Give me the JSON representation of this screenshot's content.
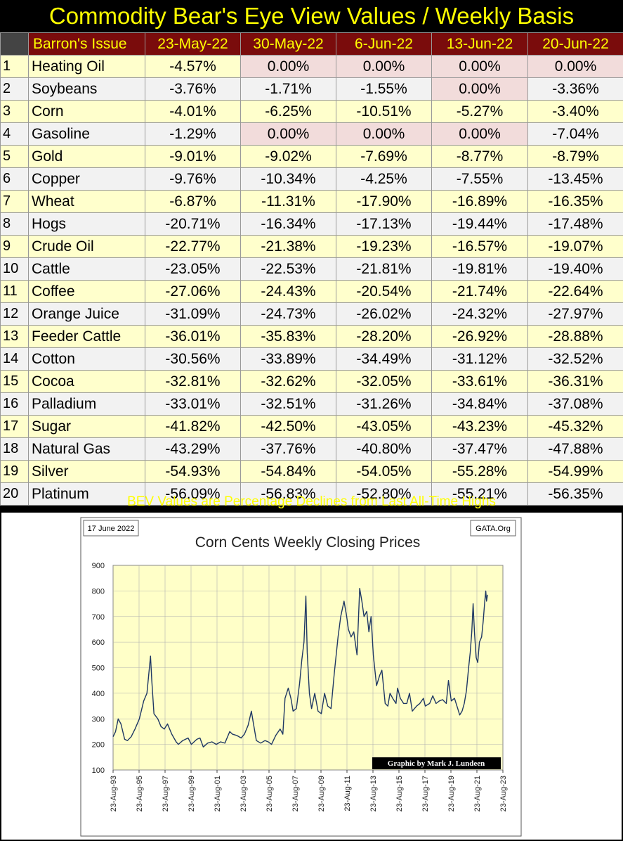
{
  "title": "Commodity Bear's Eye View Values / Weekly Basis",
  "table": {
    "header_label": "Barron's Issue",
    "columns": [
      "23-May-22",
      "30-May-22",
      "6-Jun-22",
      "13-Jun-22",
      "20-Jun-22"
    ],
    "rows": [
      {
        "rank": "1",
        "name": "Heating Oil",
        "values": [
          "-4.57%",
          "0.00%",
          "0.00%",
          "0.00%",
          "0.00%"
        ]
      },
      {
        "rank": "2",
        "name": "Soybeans",
        "values": [
          "-3.76%",
          "-1.71%",
          "-1.55%",
          "0.00%",
          "-3.36%"
        ]
      },
      {
        "rank": "3",
        "name": "Corn",
        "values": [
          "-4.01%",
          "-6.25%",
          "-10.51%",
          "-5.27%",
          "-3.40%"
        ]
      },
      {
        "rank": "4",
        "name": "Gasoline",
        "values": [
          "-1.29%",
          "0.00%",
          "0.00%",
          "0.00%",
          "-7.04%"
        ]
      },
      {
        "rank": "5",
        "name": "Gold",
        "values": [
          "-9.01%",
          "-9.02%",
          "-7.69%",
          "-8.77%",
          "-8.79%"
        ]
      },
      {
        "rank": "6",
        "name": "Copper",
        "values": [
          "-9.76%",
          "-10.34%",
          "-4.25%",
          "-7.55%",
          "-13.45%"
        ]
      },
      {
        "rank": "7",
        "name": "Wheat",
        "values": [
          "-6.87%",
          "-11.31%",
          "-17.90%",
          "-16.89%",
          "-16.35%"
        ]
      },
      {
        "rank": "8",
        "name": "Hogs",
        "values": [
          "-20.71%",
          "-16.34%",
          "-17.13%",
          "-19.44%",
          "-17.48%"
        ]
      },
      {
        "rank": "9",
        "name": "Crude Oil",
        "values": [
          "-22.77%",
          "-21.38%",
          "-19.23%",
          "-16.57%",
          "-19.07%"
        ]
      },
      {
        "rank": "10",
        "name": "Cattle",
        "values": [
          "-23.05%",
          "-22.53%",
          "-21.81%",
          "-19.81%",
          "-19.40%"
        ]
      },
      {
        "rank": "11",
        "name": "Coffee",
        "values": [
          "-27.06%",
          "-24.43%",
          "-20.54%",
          "-21.74%",
          "-22.64%"
        ]
      },
      {
        "rank": "12",
        "name": "Orange Juice",
        "values": [
          "-31.09%",
          "-24.73%",
          "-26.02%",
          "-24.32%",
          "-27.97%"
        ]
      },
      {
        "rank": "13",
        "name": "Feeder Cattle",
        "values": [
          "-36.01%",
          "-35.83%",
          "-28.20%",
          "-26.92%",
          "-28.88%"
        ]
      },
      {
        "rank": "14",
        "name": "Cotton",
        "values": [
          "-30.56%",
          "-33.89%",
          "-34.49%",
          "-31.12%",
          "-32.52%"
        ]
      },
      {
        "rank": "15",
        "name": "Cocoa",
        "values": [
          "-32.81%",
          "-32.62%",
          "-32.05%",
          "-33.61%",
          "-36.31%"
        ]
      },
      {
        "rank": "16",
        "name": "Palladium",
        "values": [
          "-33.01%",
          "-32.51%",
          "-31.26%",
          "-34.84%",
          "-37.08%"
        ]
      },
      {
        "rank": "17",
        "name": "Sugar",
        "values": [
          "-41.82%",
          "-42.50%",
          "-43.05%",
          "-43.23%",
          "-45.32%"
        ]
      },
      {
        "rank": "18",
        "name": "Natural Gas",
        "values": [
          "-43.29%",
          "-37.76%",
          "-40.80%",
          "-37.47%",
          "-47.88%"
        ]
      },
      {
        "rank": "19",
        "name": "Silver",
        "values": [
          "-54.93%",
          "-54.84%",
          "-54.05%",
          "-55.28%",
          "-54.99%"
        ]
      },
      {
        "rank": "20",
        "name": "Platinum",
        "values": [
          "-56.09%",
          "-56.83%",
          "-52.80%",
          "-55.21%",
          "-56.35%"
        ]
      }
    ]
  },
  "footnote": "BEV Values are Percentage Declines from Last All-Time Highs",
  "colors": {
    "title_text": "#ffff00",
    "header_bg": "#7a0c0c",
    "row_odd_bg": "#ffffcc",
    "row_even_bg": "#f2f2f2",
    "zero_cell_bg": "#f2dcdb",
    "plot_bg": "#ffffc8",
    "series_line": "#1f3864"
  },
  "chart_data": {
    "type": "line",
    "title": "Corn Cents Weekly Closing Prices",
    "date_label": "17 June 2022",
    "source_label": "GATA.Org",
    "credit_label": "Graphic by Mark J. Lundeen",
    "xlabel": "",
    "ylabel": "",
    "ylim": [
      100,
      900
    ],
    "yticks": [
      "100",
      "200",
      "300",
      "400",
      "500",
      "600",
      "700",
      "800",
      "900"
    ],
    "xlim": [
      "1993-08-23",
      "2023-08-23"
    ],
    "xticks": [
      "23-Aug-93",
      "23-Aug-95",
      "23-Aug-97",
      "23-Aug-99",
      "23-Aug-01",
      "23-Aug-03",
      "23-Aug-05",
      "23-Aug-07",
      "23-Aug-09",
      "23-Aug-11",
      "23-Aug-13",
      "23-Aug-15",
      "23-Aug-17",
      "23-Aug-19",
      "23-Aug-21",
      "23-Aug-23"
    ],
    "grid": true,
    "legend": "none",
    "series": [
      {
        "x": [
          "1993-08-23",
          "1993-11-01",
          "1994-01-15",
          "1994-04-01",
          "1994-07-15",
          "1994-10-01",
          "1995-01-15",
          "1995-05-01",
          "1995-09-01",
          "1996-01-01",
          "1996-04-01",
          "1996-07-10",
          "1996-08-15",
          "1996-10-15",
          "1997-02-01",
          "1997-05-01",
          "1997-08-01",
          "1997-11-01",
          "1998-03-01",
          "1998-07-01",
          "1998-09-01",
          "1999-01-01",
          "1999-06-01",
          "1999-09-01",
          "2000-02-01",
          "2000-05-01",
          "2000-08-01",
          "2000-12-01",
          "2001-04-01",
          "2001-08-01",
          "2001-12-01",
          "2002-04-01",
          "2002-08-15",
          "2002-11-01",
          "2003-03-01",
          "2003-07-01",
          "2003-10-01",
          "2004-01-15",
          "2004-04-15",
          "2004-06-01",
          "2004-09-01",
          "2005-01-01",
          "2005-05-01",
          "2005-08-01",
          "2005-11-01",
          "2006-03-01",
          "2006-07-01",
          "2006-09-15",
          "2006-11-15",
          "2007-02-15",
          "2007-05-01",
          "2007-07-01",
          "2007-10-01",
          "2008-01-01",
          "2008-03-01",
          "2008-05-01",
          "2008-06-25",
          "2008-08-01",
          "2008-10-01",
          "2008-12-01",
          "2009-03-01",
          "2009-06-01",
          "2009-09-01",
          "2009-12-01",
          "2010-03-01",
          "2010-06-01",
          "2010-09-01",
          "2010-12-15",
          "2011-03-01",
          "2011-06-01",
          "2011-08-15",
          "2011-10-01",
          "2011-12-15",
          "2012-03-01",
          "2012-06-01",
          "2012-08-15",
          "2012-10-15",
          "2012-12-15",
          "2013-03-01",
          "2013-05-01",
          "2013-07-01",
          "2013-09-01",
          "2013-12-01",
          "2014-03-01",
          "2014-05-01",
          "2014-08-01",
          "2014-10-15",
          "2014-12-15",
          "2015-03-01",
          "2015-06-01",
          "2015-07-15",
          "2015-10-01",
          "2016-01-01",
          "2016-04-01",
          "2016-06-15",
          "2016-09-01",
          "2017-01-01",
          "2017-04-01",
          "2017-07-10",
          "2017-09-01",
          "2018-01-01",
          "2018-04-01",
          "2018-07-01",
          "2018-10-01",
          "2019-01-01",
          "2019-04-15",
          "2019-06-15",
          "2019-09-01",
          "2019-12-01",
          "2020-03-01",
          "2020-04-25",
          "2020-07-01",
          "2020-09-01",
          "2020-11-01",
          "2021-01-01",
          "2021-02-15",
          "2021-04-01",
          "2021-05-07",
          "2021-06-15",
          "2021-08-01",
          "2021-09-15",
          "2021-11-01",
          "2022-01-01",
          "2022-02-15",
          "2022-04-01",
          "2022-04-29",
          "2022-05-20",
          "2022-06-17"
        ],
        "values": [
          230,
          250,
          300,
          280,
          220,
          215,
          230,
          260,
          300,
          370,
          400,
          545,
          450,
          320,
          300,
          270,
          260,
          280,
          240,
          210,
          200,
          215,
          225,
          200,
          220,
          225,
          190,
          205,
          210,
          200,
          210,
          205,
          250,
          240,
          235,
          225,
          240,
          275,
          330,
          290,
          215,
          205,
          215,
          210,
          200,
          235,
          260,
          240,
          380,
          420,
          380,
          330,
          340,
          440,
          530,
          600,
          780,
          560,
          400,
          340,
          400,
          330,
          320,
          400,
          350,
          340,
          480,
          620,
          700,
          760,
          700,
          650,
          620,
          640,
          550,
          810,
          760,
          700,
          720,
          640,
          700,
          550,
          430,
          470,
          490,
          360,
          350,
          400,
          380,
          360,
          420,
          380,
          360,
          360,
          400,
          330,
          350,
          360,
          380,
          350,
          360,
          390,
          360,
          370,
          375,
          360,
          450,
          370,
          380,
          340,
          315,
          330,
          360,
          410,
          500,
          560,
          640,
          750,
          640,
          540,
          520,
          600,
          620,
          680,
          760,
          800,
          760,
          785
        ]
      }
    ]
  }
}
